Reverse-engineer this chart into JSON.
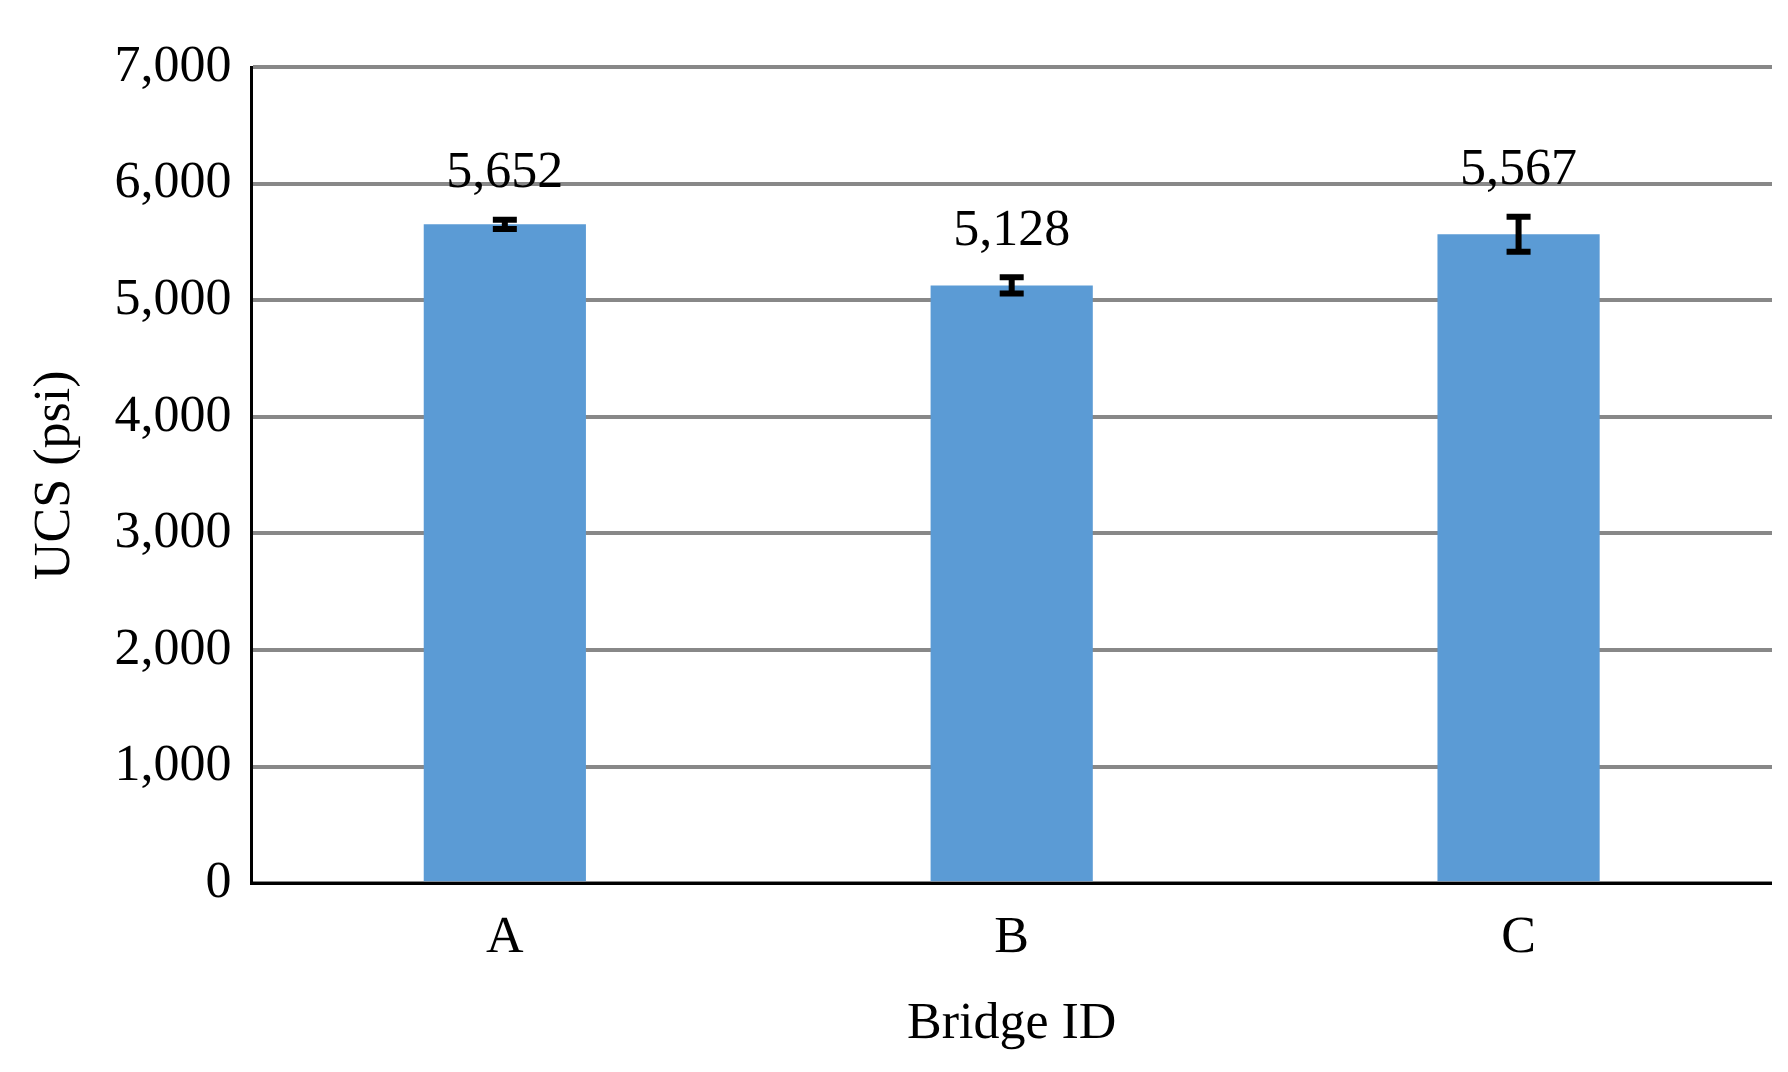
{
  "chart_data": {
    "type": "bar",
    "xlabel": "Bridge ID",
    "ylabel": "UCS (psi)",
    "categories": [
      "A",
      "B",
      "C"
    ],
    "values": [
      5652,
      5128,
      5567
    ],
    "errors": [
      40,
      70,
      150
    ],
    "color": "#5b9bd5",
    "value_labels": [
      "5,652",
      "5,128",
      "5,567"
    ],
    "ylim": [
      0,
      7000
    ],
    "yticks": [
      {
        "value": 0,
        "label": "0"
      },
      {
        "value": 1000,
        "label": "1,000"
      },
      {
        "value": 2000,
        "label": "2,000"
      },
      {
        "value": 3000,
        "label": "3,000"
      },
      {
        "value": 4000,
        "label": "4,000"
      },
      {
        "value": 5000,
        "label": "5,000"
      },
      {
        "value": 6000,
        "label": "6,000"
      },
      {
        "value": 7000,
        "label": "7,000"
      }
    ],
    "grid": "y",
    "legend": false
  }
}
